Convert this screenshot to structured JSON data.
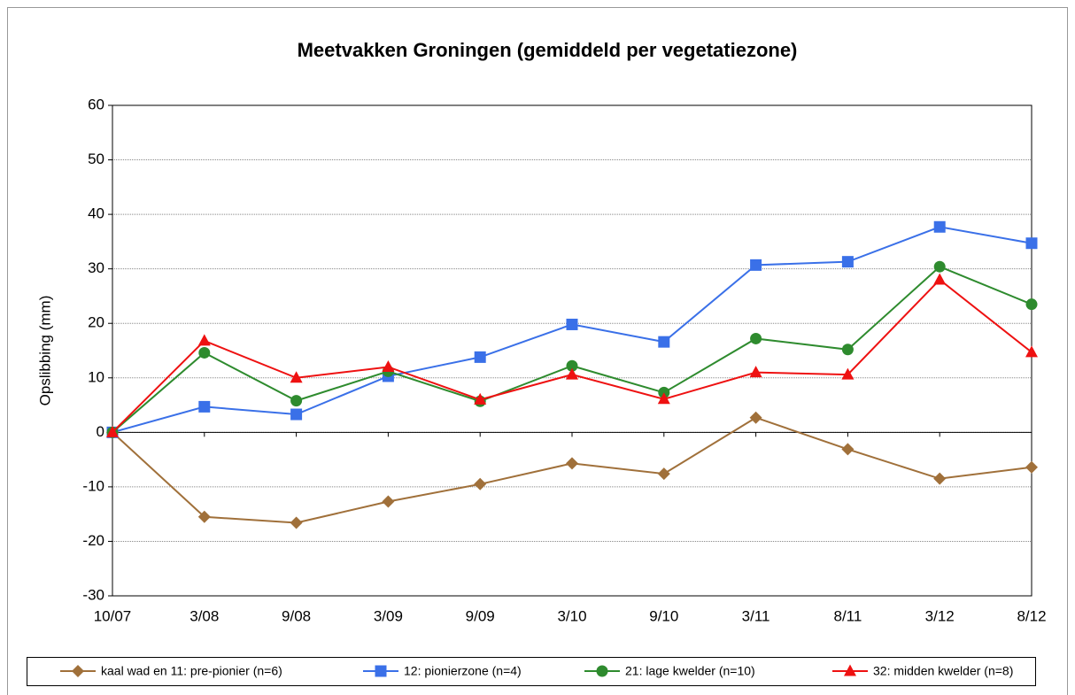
{
  "chart_data": {
    "type": "line",
    "title": "Meetvakken Groningen (gemiddeld per vegetatiezone)",
    "y_label": "Opslibbing (mm)",
    "categories": [
      "10/07",
      "3/08",
      "9/08",
      "3/09",
      "9/09",
      "3/10",
      "9/10",
      "3/11",
      "8/11",
      "3/12",
      "8/12"
    ],
    "series": [
      {
        "name": "kaal wad en 11: pre-pionier (n=6)",
        "color": "#a0703a",
        "marker": "diamond",
        "values": [
          0,
          -15.5,
          -16.6,
          -12.7,
          -9.5,
          -5.7,
          -7.6,
          2.7,
          -3.1,
          -8.5,
          -6.4
        ]
      },
      {
        "name": "12: pionierzone (n=4)",
        "color": "#3a70e8",
        "marker": "square",
        "values": [
          0,
          4.7,
          3.3,
          10.3,
          13.8,
          19.8,
          16.6,
          30.7,
          31.3,
          37.7,
          34.7
        ]
      },
      {
        "name": "21: lage kwelder (n=10)",
        "color": "#2e8b2e",
        "marker": "circle",
        "values": [
          0,
          14.6,
          5.8,
          11.2,
          5.7,
          12.2,
          7.3,
          17.2,
          15.2,
          30.4,
          23.5
        ]
      },
      {
        "name": "32: midden kwelder (n=8)",
        "color": "#ee1111",
        "marker": "triangle",
        "values": [
          0,
          16.8,
          10.0,
          12.0,
          6.0,
          10.6,
          6.1,
          11.0,
          10.6,
          28.0,
          14.7
        ]
      }
    ],
    "ylim": [
      -30,
      60
    ],
    "yticks": [
      -30,
      -20,
      -10,
      0,
      10,
      20,
      30,
      40,
      50,
      60
    ],
    "grid": true,
    "legend": "bottom"
  }
}
